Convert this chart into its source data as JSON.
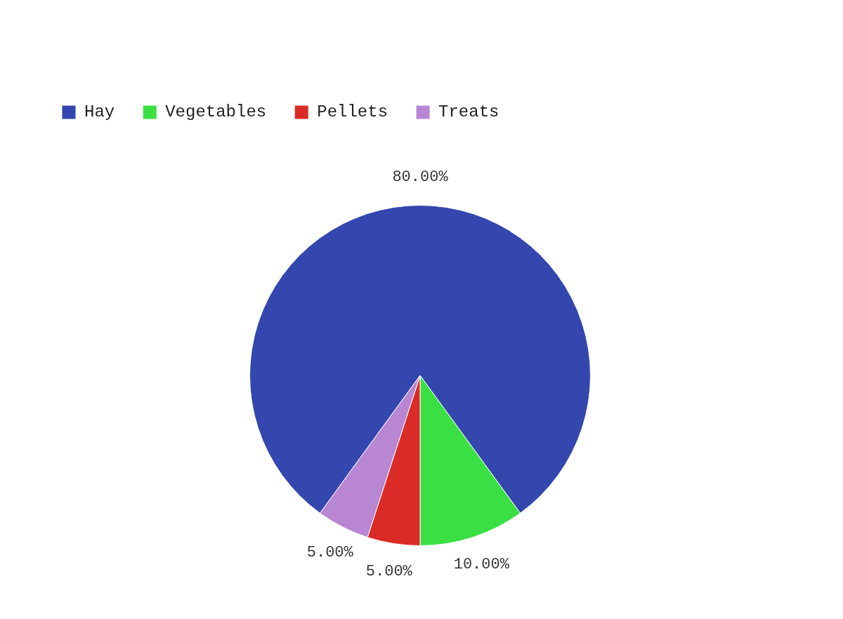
{
  "chart_data": {
    "type": "pie",
    "categories": [
      "Hay",
      "Vegetables",
      "Pellets",
      "Treats"
    ],
    "values": [
      80,
      10,
      5,
      5
    ],
    "colors": [
      "#3347ae",
      "#3ae043",
      "#db2b26",
      "#b986d3"
    ],
    "value_labels": [
      "80.00%",
      "10.00%",
      "5.00%",
      "5.00%"
    ],
    "legend": "top left"
  }
}
